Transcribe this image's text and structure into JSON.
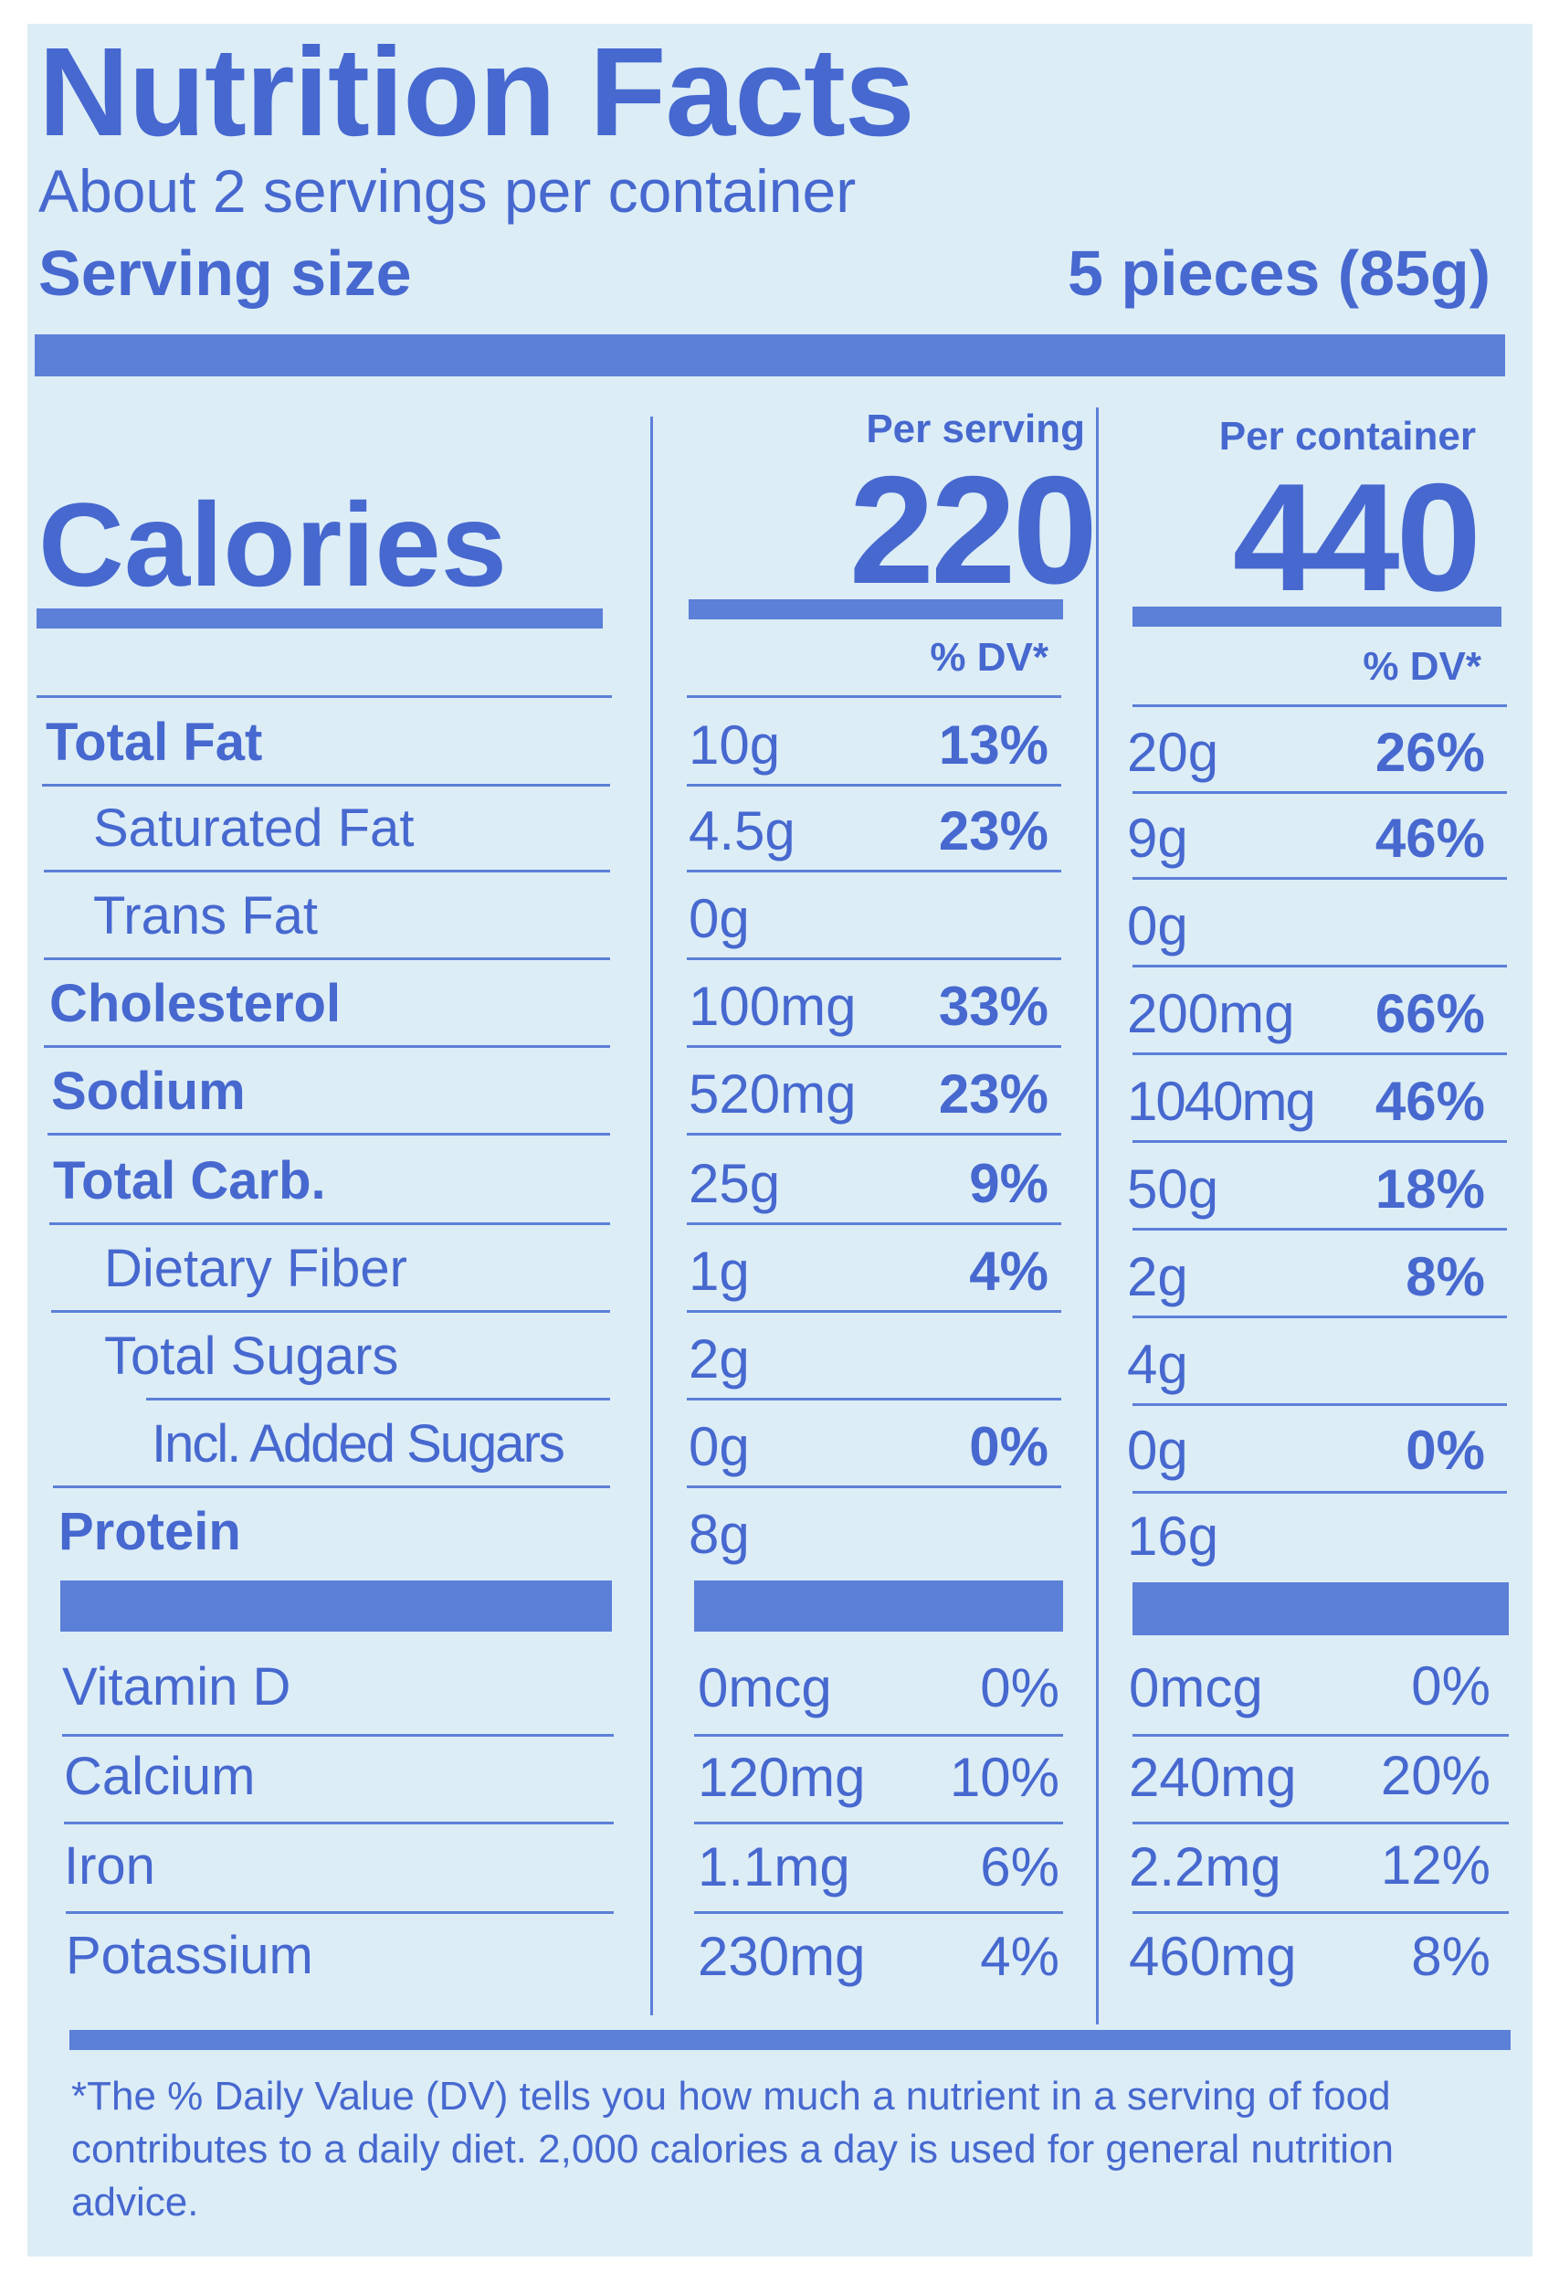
{
  "title": "Nutrition Facts",
  "servings_per_container": "About 2 servings per container",
  "serving_size": {
    "label": "Serving size",
    "value": "5 pieces (85g)"
  },
  "calories": {
    "label": "Calories",
    "per_serving": "220",
    "per_container": "440"
  },
  "columns": {
    "per_serving": "Per serving",
    "per_container": "Per container",
    "dv": "% DV*"
  },
  "nutrients": [
    {
      "name": "Total Fat",
      "serving": "10g",
      "serving_dv": "13%",
      "container": "20g",
      "container_dv": "26%"
    },
    {
      "name": "Saturated Fat",
      "serving": "4.5g",
      "serving_dv": "23%",
      "container": "9g",
      "container_dv": "46%"
    },
    {
      "name": "Trans Fat",
      "serving": "0g",
      "serving_dv": "",
      "container": "0g",
      "container_dv": ""
    },
    {
      "name": "Cholesterol",
      "serving": "100mg",
      "serving_dv": "33%",
      "container": "200mg",
      "container_dv": "66%"
    },
    {
      "name": "Sodium",
      "serving": "520mg",
      "serving_dv": "23%",
      "container": "1040mg",
      "container_dv": "46%"
    },
    {
      "name": "Total Carb.",
      "serving": "25g",
      "serving_dv": "9%",
      "container": "50g",
      "container_dv": "18%"
    },
    {
      "name": "Dietary Fiber",
      "serving": "1g",
      "serving_dv": "4%",
      "container": "2g",
      "container_dv": "8%"
    },
    {
      "name": "Total Sugars",
      "serving": "2g",
      "serving_dv": "",
      "container": "4g",
      "container_dv": ""
    },
    {
      "name": "Incl. Added Sugars",
      "serving": "0g",
      "serving_dv": "0%",
      "container": "0g",
      "container_dv": "0%"
    },
    {
      "name": "Protein",
      "serving": "8g",
      "serving_dv": "",
      "container": "16g",
      "container_dv": ""
    }
  ],
  "vitamins": [
    {
      "name": "Vitamin D",
      "serving": "0mcg",
      "serving_dv": "0%",
      "container": "0mcg",
      "container_dv": "0%"
    },
    {
      "name": "Calcium",
      "serving": "120mg",
      "serving_dv": "10%",
      "container": "240mg",
      "container_dv": "20%"
    },
    {
      "name": "Iron",
      "serving": "1.1mg",
      "serving_dv": "6%",
      "container": "2.2mg",
      "container_dv": "12%"
    },
    {
      "name": "Potassium",
      "serving": "230mg",
      "serving_dv": "4%",
      "container": "460mg",
      "container_dv": "8%"
    }
  ],
  "footnote": "*The % Daily Value (DV) tells you how much a nutrient in a serving of food contributes to a daily diet. 2,000 calories a day is used for general nutrition advice.",
  "colors": {
    "ink": "#4668cf",
    "bars": "#5c7fd8",
    "background": "#dcedf6"
  }
}
